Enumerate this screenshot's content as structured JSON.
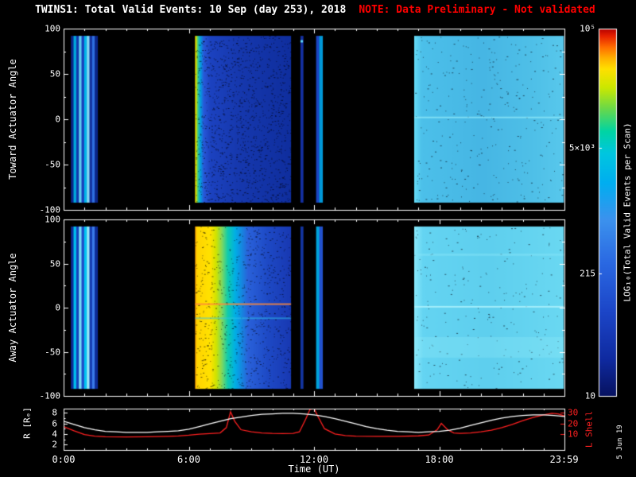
{
  "title": {
    "main": "TWINS1: Total Valid Events: 10 Sep (day 253), 2018",
    "note": "NOTE: Data Preliminary - Not validated"
  },
  "footer": {
    "date_stamp": "5 Jun 19"
  },
  "colors": {
    "background": "#000000",
    "axis": "#ffffff",
    "note": "#ff0000",
    "lshell_line": "#ff2020",
    "r_line": "#ffffff"
  },
  "time_axis": {
    "label": "Time (UT)",
    "range_hours": [
      0,
      24
    ],
    "tick_hours": [
      0,
      6,
      12,
      18,
      23.983
    ],
    "tick_labels": [
      "0:00",
      "6:00",
      "12:00",
      "18:00",
      "23:59"
    ],
    "minor_every_hours": 1
  },
  "chart_data": [
    {
      "type": "heatmap",
      "name": "toward-actuator-spectrogram",
      "ylabel": "Toward Actuator Angle",
      "xlim_hours": [
        0,
        24
      ],
      "ylim": [
        -100,
        100
      ],
      "yticks": [
        100,
        50,
        0,
        -50,
        -100
      ],
      "yticks_minor_step": 25,
      "segments": [
        {
          "t0": 0.35,
          "t1": 1.62,
          "log10_range": [
            1.5,
            3.3
          ],
          "columns": [
            "#0a2488",
            "#00aadc",
            "#123aae",
            "#5eccf0",
            "#1840bc",
            "#00b4e8",
            "#86d8f4",
            "#12309e",
            "#2e6ede",
            "#0a2488"
          ]
        },
        {
          "t0": 6.3,
          "t1": 10.9,
          "log10_range": [
            1.7,
            4.3
          ],
          "noise": 0.05,
          "stops": [
            [
              0,
              "#ffd800"
            ],
            [
              0.012,
              "#c8e000"
            ],
            [
              0.03,
              "#38c890"
            ],
            [
              0.055,
              "#00a0e0"
            ],
            [
              0.09,
              "#2858d8"
            ],
            [
              0.16,
              "#1c42c0"
            ],
            [
              0.45,
              "#1638ae"
            ],
            [
              1,
              "#0f2e9e"
            ]
          ]
        },
        {
          "t0": 11.35,
          "t1": 11.47,
          "log10_range": [
            1.5,
            2.8
          ],
          "columns": [
            "#142fa0"
          ],
          "hlines": [
            {
              "v": 86,
              "c": "#60d8f8",
              "w": 3,
              "a": 1
            }
          ]
        },
        {
          "t0": 12.1,
          "t1": 12.4,
          "log10_range": [
            1.6,
            2.9
          ],
          "columns": [
            "#1c46c2",
            "#0098d8"
          ]
        },
        {
          "t0": 16.8,
          "t1": 23.97,
          "log10_range": [
            2.6,
            3.1
          ],
          "noise": 0.008,
          "stops": [
            [
              0,
              "#66dcf6"
            ],
            [
              0.05,
              "#4cc0ea"
            ],
            [
              0.45,
              "#46b6e4"
            ],
            [
              0.8,
              "#4fc0e8"
            ],
            [
              1,
              "#58c8ec"
            ]
          ],
          "hlines": [
            {
              "v": 2,
              "c": "#8ee8f8",
              "w": 2,
              "a": 0.75
            }
          ]
        }
      ]
    },
    {
      "type": "heatmap",
      "name": "away-actuator-spectrogram",
      "ylabel": "Away Actuator Angle",
      "xlim_hours": [
        0,
        24
      ],
      "ylim": [
        -100,
        100
      ],
      "yticks": [
        100,
        50,
        0,
        -50,
        -100
      ],
      "yticks_minor_step": 25,
      "segments": [
        {
          "t0": 0.35,
          "t1": 1.62,
          "log10_range": [
            1.6,
            3.5
          ],
          "columns": [
            "#0c2a96",
            "#00c0ee",
            "#1644bc",
            "#74dcf8",
            "#1e4cc8",
            "#00c4f2",
            "#98e8fa",
            "#143ab0",
            "#3a7ae8",
            "#0c2a96"
          ]
        },
        {
          "t0": 6.3,
          "t1": 10.9,
          "log10_range": [
            2.0,
            4.6
          ],
          "noise": 0.03,
          "stops": [
            [
              0,
              "#ff9c00"
            ],
            [
              0.02,
              "#ffd400"
            ],
            [
              0.16,
              "#ffe200"
            ],
            [
              0.22,
              "#cfe400"
            ],
            [
              0.28,
              "#7fd860"
            ],
            [
              0.34,
              "#10ccac"
            ],
            [
              0.42,
              "#00aee6"
            ],
            [
              0.55,
              "#2a62da"
            ],
            [
              0.75,
              "#1e4ac6"
            ],
            [
              1,
              "#1838b2"
            ]
          ],
          "hlines": [
            {
              "v": 4,
              "c": "#ff8838",
              "w": 2,
              "a": 0.85
            },
            {
              "v": -12,
              "c": "#2fc4ea",
              "w": 2,
              "a": 0.5
            }
          ]
        },
        {
          "t0": 11.35,
          "t1": 11.47,
          "log10_range": [
            1.5,
            2.6
          ],
          "columns": [
            "#13349f"
          ]
        },
        {
          "t0": 12.1,
          "t1": 12.4,
          "log10_range": [
            1.8,
            3.0
          ],
          "columns": [
            "#00a2da",
            "#2250cc"
          ]
        },
        {
          "t0": 16.8,
          "t1": 23.97,
          "log10_range": [
            2.8,
            3.4
          ],
          "noise": 0.006,
          "stops": [
            [
              0,
              "#8aeafc"
            ],
            [
              0.06,
              "#64d4f2"
            ],
            [
              0.5,
              "#5ecfee"
            ],
            [
              1,
              "#6ad8f2"
            ]
          ],
          "hlines": [
            {
              "v": 1,
              "c": "#b2f4fe",
              "w": 2,
              "a": 0.8
            },
            {
              "v": -45,
              "c": "#92ecfa",
              "w": 26,
              "a": 0.3
            },
            {
              "v": 60,
              "c": "#84e4f8",
              "w": 3,
              "a": 0.5
            }
          ]
        }
      ]
    },
    {
      "type": "line",
      "name": "orbit-parameters",
      "left_label": "R [Rₑ]",
      "left_ticks": [
        8,
        6,
        4,
        2
      ],
      "left_range": [
        2,
        8
      ],
      "right_label": "L Shell",
      "right_ticks": [
        30,
        20,
        10
      ],
      "right_range": [
        10,
        30
      ],
      "series": [
        {
          "name": "L Shell",
          "axis": "right",
          "color": "#ff2020",
          "t": [
            0,
            0.5,
            1,
            1.5,
            2,
            3,
            4,
            5,
            5.5,
            6,
            6.5,
            7,
            7.5,
            7.8,
            8,
            8.2,
            8.5,
            9,
            9.5,
            10,
            10.5,
            11,
            11.3,
            11.6,
            11.8,
            12,
            12.2,
            12.5,
            13,
            13.5,
            14,
            15,
            16,
            17,
            17.5,
            17.9,
            18.1,
            18.4,
            18.7,
            19,
            19.5,
            20,
            20.5,
            21,
            21.5,
            22,
            22.5,
            23,
            23.4,
            23.7,
            24
          ],
          "v": [
            17,
            13,
            9.5,
            8,
            7.4,
            7.2,
            7.3,
            7.7,
            8.1,
            8.8,
            9.8,
            10.4,
            11,
            16,
            31,
            22,
            14,
            12,
            11,
            10.5,
            10.3,
            10.6,
            12,
            24,
            33,
            34,
            26,
            15,
            10,
            8.5,
            8,
            7.8,
            7.8,
            8.2,
            9,
            14,
            20,
            14,
            11,
            10.5,
            11,
            12,
            13.5,
            16,
            19,
            22.5,
            25.5,
            28,
            29.5,
            29,
            27
          ]
        },
        {
          "name": "R",
          "axis": "left",
          "color": "#ffffff",
          "t": [
            0,
            0.5,
            1,
            1.5,
            2,
            2.5,
            3,
            3.5,
            4,
            4.5,
            5,
            5.5,
            6,
            6.5,
            7,
            7.5,
            8,
            8.5,
            9,
            9.5,
            10,
            10.5,
            11,
            11.5,
            12,
            12.5,
            13,
            13.5,
            14,
            14.5,
            15,
            15.5,
            16,
            16.5,
            17,
            17.5,
            18,
            18.5,
            19,
            19.5,
            20,
            20.5,
            21,
            21.5,
            22,
            22.5,
            23,
            23.5,
            24
          ],
          "v": [
            6.4,
            5.8,
            5.2,
            4.8,
            4.5,
            4.4,
            4.3,
            4.3,
            4.3,
            4.4,
            4.5,
            4.6,
            4.9,
            5.4,
            5.9,
            6.4,
            6.9,
            7.2,
            7.5,
            7.7,
            7.8,
            7.9,
            7.9,
            7.8,
            7.6,
            7.3,
            6.9,
            6.4,
            5.9,
            5.4,
            5.0,
            4.7,
            4.5,
            4.4,
            4.3,
            4.4,
            4.5,
            4.7,
            5.1,
            5.6,
            6.1,
            6.6,
            7.0,
            7.3,
            7.5,
            7.6,
            7.6,
            7.5,
            7.3
          ]
        }
      ]
    },
    {
      "type": "colorbar",
      "name": "intensity-colorbar",
      "label": "LOG₁₀(Total Valid Events per Scan)",
      "tick_labels": [
        "10⁵",
        "5×10³",
        "215",
        "10"
      ],
      "tick_values": [
        100000,
        5000,
        215,
        10
      ],
      "tick_fracs_from_top": [
        0,
        0.325,
        0.667,
        1
      ],
      "stops_top_to_bottom": [
        [
          0,
          "#b40000"
        ],
        [
          0.02,
          "#e62000"
        ],
        [
          0.05,
          "#ff6c00"
        ],
        [
          0.08,
          "#ffb000"
        ],
        [
          0.11,
          "#ffe000"
        ],
        [
          0.16,
          "#cce800"
        ],
        [
          0.22,
          "#66d84c"
        ],
        [
          0.28,
          "#00d4a4"
        ],
        [
          0.34,
          "#00c6e0"
        ],
        [
          0.42,
          "#00aef0"
        ],
        [
          0.52,
          "#3c92ee"
        ],
        [
          0.64,
          "#2a68e2"
        ],
        [
          0.77,
          "#1c46c8"
        ],
        [
          0.9,
          "#0f2aa0"
        ],
        [
          1,
          "#071260"
        ]
      ]
    }
  ]
}
